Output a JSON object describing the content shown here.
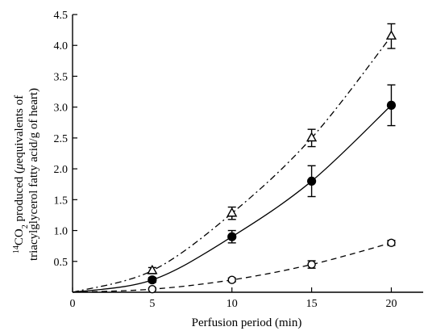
{
  "chart_data": {
    "type": "line",
    "xlabel": "Perfusion period (min)",
    "ylabel_line1": "triacylglycerol fatty acid/g of heart)",
    "ylabel_line2_sup": "14",
    "ylabel_line2_co": "CO",
    "ylabel_line2_sub": "2",
    "ylabel_line2_rest": " produced (",
    "ylabel_line2_mu": "μ",
    "ylabel_line2_end": "equivalents of",
    "xlim": [
      0,
      22
    ],
    "ylim": [
      0,
      4.5
    ],
    "x_ticks": [
      0,
      5,
      10,
      15,
      20
    ],
    "x_tick_labels": [
      "0",
      "5",
      "10",
      "15",
      "20"
    ],
    "y_ticks": [
      0.5,
      1.0,
      1.5,
      2.0,
      2.5,
      3.0,
      3.5,
      4.0,
      4.5
    ],
    "y_tick_labels": [
      "0.5",
      "1.0",
      "1.5",
      "2.0",
      "2.5",
      "3.0",
      "3.5",
      "4.0",
      "4.5"
    ],
    "grid": false,
    "series": [
      {
        "marker": "open-triangle",
        "line_style": "dash-dot",
        "points": [
          {
            "x": 0,
            "y": 0
          },
          {
            "x": 5,
            "y": 0.35,
            "err": 0.05
          },
          {
            "x": 10,
            "y": 1.28,
            "err": 0.1
          },
          {
            "x": 15,
            "y": 2.5,
            "err": 0.14
          },
          {
            "x": 20,
            "y": 4.15,
            "err": 0.2
          }
        ]
      },
      {
        "marker": "filled-circle",
        "line_style": "solid",
        "points": [
          {
            "x": 0,
            "y": 0
          },
          {
            "x": 5,
            "y": 0.2,
            "err": 0.04
          },
          {
            "x": 10,
            "y": 0.9,
            "err": 0.1
          },
          {
            "x": 15,
            "y": 1.8,
            "err": 0.25
          },
          {
            "x": 20,
            "y": 3.03,
            "err": 0.33
          }
        ]
      },
      {
        "marker": "open-circle",
        "line_style": "dashed",
        "points": [
          {
            "x": 0,
            "y": 0
          },
          {
            "x": 5,
            "y": 0.05,
            "err": 0.02
          },
          {
            "x": 10,
            "y": 0.2,
            "err": 0.03
          },
          {
            "x": 15,
            "y": 0.45,
            "err": 0.06
          },
          {
            "x": 20,
            "y": 0.8,
            "err": 0.04
          }
        ]
      }
    ]
  }
}
